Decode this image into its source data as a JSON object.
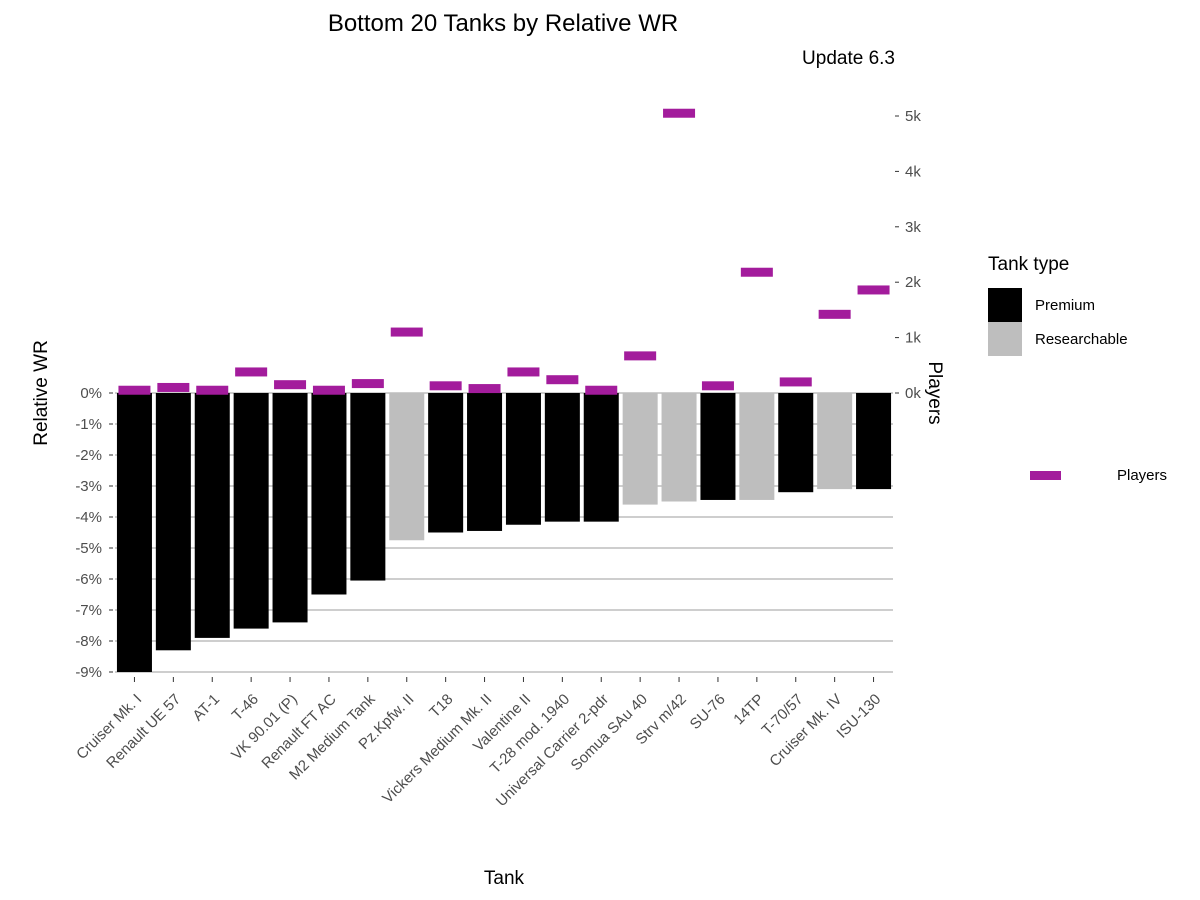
{
  "chart_data": {
    "type": "bar",
    "title": "Bottom 20 Tanks by Relative WR",
    "subtitle": "Update 6.3",
    "xlabel": "Tank",
    "ylabel": "Relative WR",
    "y2label": "Players",
    "categories": [
      "Cruiser Mk. I",
      "Renault UE 57",
      "AT-1",
      "T-46",
      "VK 90.01 (P)",
      "Renault FT AC",
      "M2 Medium Tank",
      "Pz.Kpfw. II",
      "T18",
      "Vickers Medium Mk. II",
      "Valentine II",
      "T-28 mod. 1940",
      "Universal Carrier 2-pdr",
      "Somua SAu 40",
      "Strv m/42",
      "SU-76",
      "14TP",
      "T-70/57",
      "Cruiser Mk. IV",
      "ISU-130"
    ],
    "series": [
      {
        "name": "Relative WR",
        "values": [
          -9.0,
          -8.3,
          -7.9,
          -7.6,
          -7.4,
          -6.5,
          -6.05,
          -4.75,
          -4.5,
          -4.45,
          -4.25,
          -4.15,
          -4.15,
          -3.6,
          -3.5,
          -3.45,
          -3.45,
          -3.2,
          -3.1,
          -3.1
        ],
        "tank_type": [
          "Premium",
          "Premium",
          "Premium",
          "Premium",
          "Premium",
          "Premium",
          "Premium",
          "Researchable",
          "Premium",
          "Premium",
          "Premium",
          "Premium",
          "Premium",
          "Researchable",
          "Researchable",
          "Premium",
          "Researchable",
          "Premium",
          "Researchable",
          "Premium"
        ]
      },
      {
        "name": "Players",
        "values": [
          50,
          100,
          50,
          380,
          150,
          50,
          170,
          1100,
          130,
          80,
          380,
          240,
          50,
          670,
          5050,
          130,
          2180,
          200,
          1420,
          1860
        ]
      }
    ],
    "ylim": [
      -9.3,
      0.5
    ],
    "yticks": [
      "0%",
      "-1%",
      "-2%",
      "-3%",
      "-4%",
      "-5%",
      "-6%",
      "-7%",
      "-8%",
      "-9%"
    ],
    "y2ticks": [
      "0k",
      "1k",
      "2k",
      "3k",
      "4k",
      "5k"
    ],
    "legend": {
      "title": "Tank type",
      "entries": [
        "Premium",
        "Researchable"
      ],
      "players_label": "Players",
      "placement": "right"
    },
    "colors": {
      "premium": "#000000",
      "researchable": "#bebebe",
      "players": "#a31c9c",
      "gridline": "#bebebe",
      "axis_text": "#4d4d4d"
    }
  }
}
